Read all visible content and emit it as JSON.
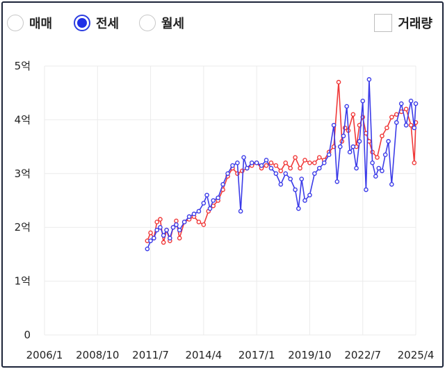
{
  "controls": {
    "radios": [
      {
        "label": "매매",
        "selected": false
      },
      {
        "label": "전세",
        "selected": true
      },
      {
        "label": "월세",
        "selected": false
      }
    ],
    "volume_checkbox": {
      "label": "거래량",
      "checked": false
    }
  },
  "colors": {
    "series_red": "#f03838",
    "series_blue": "#3b3be8",
    "radio_selected": "#1f2fe6",
    "grid": "#ebebeb"
  },
  "chart_data": {
    "type": "line",
    "y_ticks": [
      "0",
      "1억",
      "2억",
      "3억",
      "4억",
      "5억"
    ],
    "y_tick_values": [
      0,
      1,
      2,
      3,
      4,
      5
    ],
    "ylim": [
      0,
      5
    ],
    "x_ticks": [
      "2006/1",
      "2008/10",
      "2011/7",
      "2014/4",
      "2017/1",
      "2019/10",
      "2022/7",
      "2025/4"
    ],
    "x_tick_values": [
      2006.0,
      2008.75,
      2011.5,
      2014.25,
      2017.0,
      2019.75,
      2022.5,
      2025.25
    ],
    "xlim": [
      2006.0,
      2025.25
    ],
    "grid": true,
    "series": [
      {
        "color": "#f03838",
        "x": [
          2011.33,
          2011.5,
          2011.67,
          2011.83,
          2012.0,
          2012.17,
          2012.33,
          2012.5,
          2012.67,
          2012.83,
          2013.0,
          2013.25,
          2013.5,
          2013.75,
          2014.0,
          2014.25,
          2014.5,
          2014.75,
          2015.0,
          2015.25,
          2015.5,
          2015.75,
          2016.0,
          2016.25,
          2016.5,
          2016.75,
          2017.0,
          2017.25,
          2017.5,
          2017.75,
          2018.0,
          2018.25,
          2018.5,
          2018.75,
          2019.0,
          2019.25,
          2019.5,
          2019.75,
          2020.0,
          2020.25,
          2020.5,
          2020.75,
          2021.0,
          2021.25,
          2021.42,
          2021.58,
          2021.75,
          2022.0,
          2022.17,
          2022.33,
          2022.5,
          2022.67,
          2022.83,
          2023.0,
          2023.25,
          2023.5,
          2023.75,
          2024.0,
          2024.25,
          2024.5,
          2024.75,
          2025.0,
          2025.17,
          2025.25
        ],
        "values": [
          1.75,
          1.9,
          1.8,
          2.1,
          2.15,
          1.72,
          1.95,
          1.75,
          2.0,
          2.12,
          1.8,
          2.1,
          2.15,
          2.2,
          2.1,
          2.05,
          2.3,
          2.4,
          2.5,
          2.7,
          2.95,
          3.1,
          3.0,
          3.05,
          3.1,
          3.15,
          3.2,
          3.1,
          3.15,
          3.2,
          3.15,
          3.05,
          3.2,
          3.1,
          3.3,
          3.1,
          3.25,
          3.2,
          3.2,
          3.3,
          3.25,
          3.4,
          3.5,
          4.7,
          3.6,
          3.85,
          3.8,
          4.1,
          3.5,
          3.9,
          4.05,
          3.75,
          3.6,
          3.4,
          3.3,
          3.7,
          3.85,
          4.05,
          4.1,
          4.15,
          4.2,
          3.9,
          3.2,
          3.95
        ]
      },
      {
        "color": "#3b3be8",
        "x": [
          2011.33,
          2011.5,
          2011.67,
          2011.83,
          2012.0,
          2012.17,
          2012.33,
          2012.5,
          2012.67,
          2012.83,
          2013.0,
          2013.25,
          2013.5,
          2013.75,
          2014.0,
          2014.25,
          2014.42,
          2014.58,
          2014.75,
          2015.0,
          2015.25,
          2015.5,
          2015.75,
          2016.0,
          2016.17,
          2016.33,
          2016.5,
          2016.75,
          2017.0,
          2017.25,
          2017.5,
          2017.75,
          2018.0,
          2018.25,
          2018.5,
          2018.75,
          2019.0,
          2019.17,
          2019.33,
          2019.5,
          2019.75,
          2020.0,
          2020.25,
          2020.5,
          2020.75,
          2021.0,
          2021.17,
          2021.33,
          2021.5,
          2021.67,
          2021.83,
          2022.0,
          2022.17,
          2022.33,
          2022.5,
          2022.67,
          2022.83,
          2023.0,
          2023.17,
          2023.33,
          2023.5,
          2023.67,
          2023.83,
          2024.0,
          2024.25,
          2024.5,
          2024.75,
          2025.0,
          2025.17,
          2025.25
        ],
        "values": [
          1.6,
          1.75,
          1.8,
          1.95,
          2.0,
          1.85,
          1.95,
          1.8,
          2.0,
          2.05,
          1.95,
          2.1,
          2.2,
          2.25,
          2.3,
          2.45,
          2.6,
          2.35,
          2.5,
          2.55,
          2.8,
          3.0,
          3.15,
          3.2,
          2.3,
          3.3,
          3.1,
          3.2,
          3.2,
          3.15,
          3.25,
          3.1,
          3.0,
          2.8,
          3.0,
          2.9,
          2.7,
          2.35,
          2.9,
          2.5,
          2.6,
          3.0,
          3.1,
          3.2,
          3.35,
          3.9,
          2.85,
          3.5,
          3.7,
          4.25,
          3.4,
          3.5,
          3.1,
          3.6,
          4.35,
          2.7,
          4.75,
          3.2,
          2.95,
          3.1,
          3.05,
          3.35,
          3.6,
          2.8,
          3.95,
          4.3,
          3.9,
          4.35,
          3.85,
          4.3
        ]
      }
    ]
  }
}
